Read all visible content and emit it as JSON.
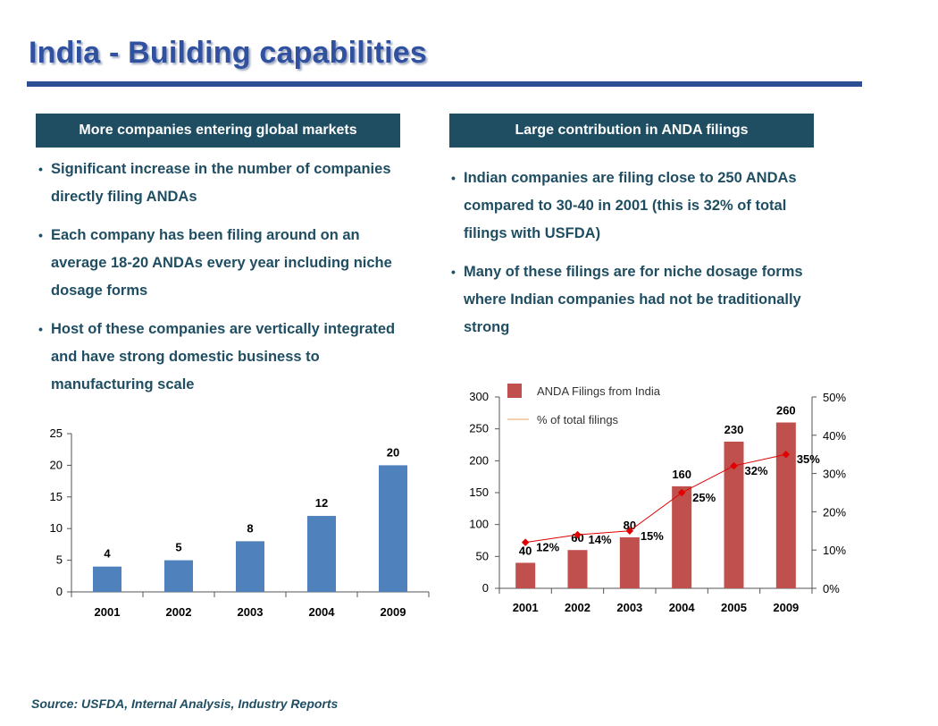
{
  "page": {
    "title": "India - Building capabilities",
    "left_header": "More companies entering global markets",
    "right_header": "Large contribution in ANDA filings",
    "left_bullets": [
      "Significant increase in the number of companies directly filing ANDAs",
      "Each company has been filing around on an average 18-20 ANDAs every year including niche dosage forms",
      "Host of these companies are vertically integrated and have strong domestic business to manufacturing scale"
    ],
    "right_bullets": [
      "Indian companies are filing close to 250 ANDAs compared to 30-40 in 2001 (this is 32% of total filings with USFDA)",
      "Many of these filings are for niche dosage forms where Indian companies had not be traditionally strong"
    ],
    "source": "Source: USFDA, Internal Analysis, Industry Reports"
  },
  "colors": {
    "title": "#3050a0",
    "header_bg": "#1f4e63",
    "bar_blue": "#4f81bd",
    "bar_red": "#c0504d",
    "line_red": "#e00000",
    "legend_line": "#e4a060"
  },
  "chart_data": [
    {
      "type": "bar",
      "categories": [
        "2001",
        "2002",
        "2003",
        "2004",
        "2009"
      ],
      "values": [
        4,
        5,
        8,
        12,
        20
      ],
      "data_labels": [
        "4",
        "5",
        "8",
        "12",
        "20"
      ],
      "ylim": [
        0,
        25
      ],
      "yticks": [
        0,
        5,
        10,
        15,
        20,
        25
      ],
      "grid": false
    },
    {
      "type": "bar",
      "categories": [
        "2001",
        "2002",
        "2003",
        "2004",
        "2005",
        "2009"
      ],
      "series": [
        {
          "name": "ANDA Filings from India",
          "type": "bar",
          "axis": "left",
          "values": [
            40,
            60,
            80,
            160,
            230,
            260
          ],
          "data_labels": [
            "40",
            "60",
            "80",
            "160",
            "230",
            "260"
          ]
        },
        {
          "name": "% of total filings",
          "type": "line",
          "axis": "right",
          "values": [
            12,
            14,
            15,
            25,
            32,
            35
          ],
          "data_labels": [
            "12%",
            "14%",
            "15%",
            "25%",
            "32%",
            "35%"
          ]
        }
      ],
      "ylim": [
        0,
        300
      ],
      "yticks": [
        0,
        50,
        100,
        150,
        200,
        250,
        300
      ],
      "y2lim": [
        0,
        50
      ],
      "y2ticks": [
        "0%",
        "10%",
        "20%",
        "30%",
        "40%",
        "50%"
      ],
      "legend": "top-left",
      "grid": false
    }
  ]
}
